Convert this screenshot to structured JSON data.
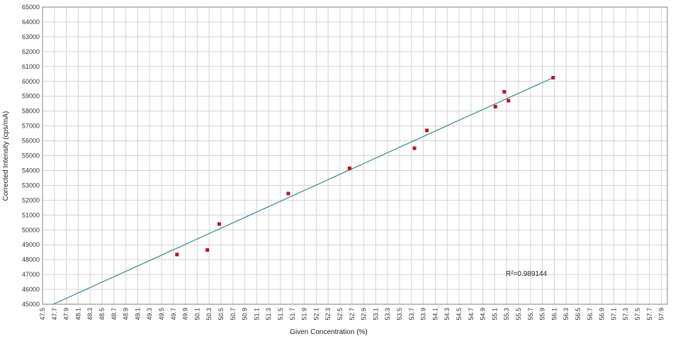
{
  "chart_data": {
    "type": "scatter",
    "xlabel": "Given Concentration (%)",
    "ylabel": "Corrected Intensity (cps/mA)",
    "xlim": [
      47.5,
      58.0
    ],
    "ylim": [
      45000,
      65000
    ],
    "x_ticks": [
      "47.5",
      "47.7",
      "47.9",
      "48.1",
      "48.3",
      "48.5",
      "48.7",
      "48.9",
      "49.1",
      "49.3",
      "49.5",
      "49.7",
      "49.9",
      "50.1",
      "50.3",
      "50.5",
      "50.7",
      "50.9",
      "51.1",
      "51.3",
      "51.5",
      "51.7",
      "51.9",
      "52.1",
      "52.3",
      "52.5",
      "52.7",
      "52.9",
      "53.1",
      "53.3",
      "53.5",
      "53.7",
      "53.9",
      "54.1",
      "54.3",
      "54.5",
      "54.7",
      "54.9",
      "55.1",
      "55.3",
      "55.5",
      "55.7",
      "55.9",
      "56.1",
      "56.3",
      "56.5",
      "56.7",
      "56.9",
      "57.1",
      "57.3",
      "57.5",
      "57.7",
      "57.9"
    ],
    "y_ticks": [
      "45000",
      "46000",
      "47000",
      "48000",
      "49000",
      "50000",
      "51000",
      "52000",
      "53000",
      "54000",
      "55000",
      "56000",
      "57000",
      "58000",
      "59000",
      "60000",
      "61000",
      "62000",
      "63000",
      "64000",
      "65000"
    ],
    "grid": true,
    "points": [
      {
        "x": 49.76,
        "y": 48350
      },
      {
        "x": 50.27,
        "y": 48650
      },
      {
        "x": 50.47,
        "y": 50400
      },
      {
        "x": 51.63,
        "y": 52450
      },
      {
        "x": 52.66,
        "y": 54150
      },
      {
        "x": 53.75,
        "y": 55500
      },
      {
        "x": 53.96,
        "y": 56700
      },
      {
        "x": 55.11,
        "y": 58300
      },
      {
        "x": 55.26,
        "y": 59300
      },
      {
        "x": 55.33,
        "y": 58700
      },
      {
        "x": 56.08,
        "y": 60250
      }
    ],
    "fit_line": {
      "x": [
        47.68,
        56.08
      ],
      "y": [
        45000,
        60250
      ],
      "color": "#2e8b8b"
    },
    "point_color": "#c0141a",
    "annotation": "R²=0.989144"
  }
}
